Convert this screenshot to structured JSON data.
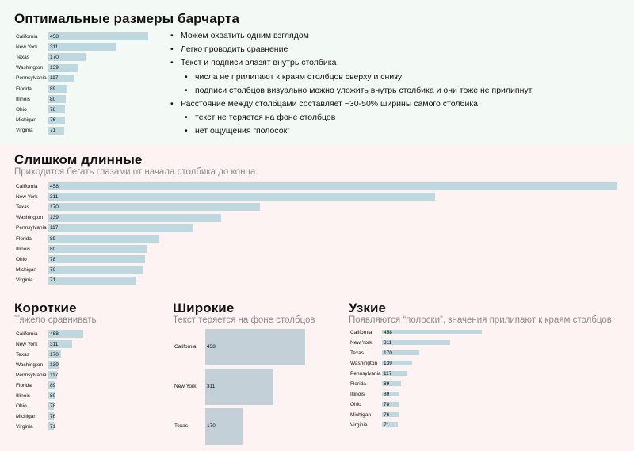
{
  "sections": {
    "optimal": {
      "title": "Оптимальные размеры барчарта",
      "bullets": [
        {
          "text": "Можем охватить одним взглядом",
          "level": 0
        },
        {
          "text": "Легко проводить сравнение",
          "level": 0
        },
        {
          "text": "Текст и подписи влазят внутрь столбика",
          "level": 0
        },
        {
          "text": "числа не прилипают к краям столбцов сверху и снизу",
          "level": 1
        },
        {
          "text": "подписи столбцов визуально можно уложить внутрь столбика и они тоже не прилипнут",
          "level": 1
        },
        {
          "text": "Расстояние между столбцами составляет ~30-50% ширины самого столбика",
          "level": 0
        },
        {
          "text": "текст не теряется на фоне столбцов",
          "level": 1
        },
        {
          "text": "нет ощущения “полосок”",
          "level": 1
        }
      ]
    },
    "too_long": {
      "title": "Слишком длинные",
      "subtitle": "Приходится бегать глазами от начала столбика до конца"
    },
    "short": {
      "title": "Короткие",
      "subtitle": "Тяжело сравнивать"
    },
    "wide": {
      "title": "Широкие",
      "subtitle": "Текст теряется на фоне столбцов"
    },
    "narrow": {
      "title": "Узкие",
      "subtitle": "Появляются “полоски”, значения прилипают к краям столбцов"
    }
  },
  "colors": {
    "top_background": "#f3faf6",
    "bottom_background": "#fdf3f2",
    "bar": "#bfd7de"
  },
  "chart_data": [
    {
      "type": "bar",
      "id": "optimal",
      "categories": [
        "California",
        "New York",
        "Texas",
        "Washington",
        "Pennsylvania",
        "Florida",
        "Illinois",
        "Ohio",
        "Michigan",
        "Virginia"
      ],
      "values": [
        458,
        311,
        170,
        139,
        117,
        89,
        80,
        78,
        76,
        71
      ]
    },
    {
      "type": "bar",
      "id": "too_long",
      "categories": [
        "California",
        "New York",
        "Texas",
        "Washington",
        "Pennsylvania",
        "Florida",
        "Illinois",
        "Ohio",
        "Michigan",
        "Virginia"
      ],
      "values": [
        458,
        311,
        170,
        139,
        117,
        89,
        80,
        78,
        76,
        71
      ]
    },
    {
      "type": "bar",
      "id": "short",
      "categories": [
        "California",
        "New York",
        "Texas",
        "Washington",
        "Pennsylvania",
        "Florida",
        "Illinois",
        "Ohio",
        "Michigan",
        "Virginia"
      ],
      "values": [
        458,
        311,
        170,
        139,
        117,
        89,
        80,
        78,
        76,
        71
      ]
    },
    {
      "type": "bar",
      "id": "wide",
      "categories": [
        "California",
        "New York",
        "Texas"
      ],
      "values": [
        458,
        311,
        170
      ]
    },
    {
      "type": "bar",
      "id": "narrow",
      "categories": [
        "California",
        "New York",
        "Texas",
        "Washington",
        "Pennsylvania",
        "Florida",
        "Illinois",
        "Ohio",
        "Michigan",
        "Virginia"
      ],
      "values": [
        458,
        311,
        170,
        139,
        117,
        89,
        80,
        78,
        76,
        71
      ]
    }
  ]
}
